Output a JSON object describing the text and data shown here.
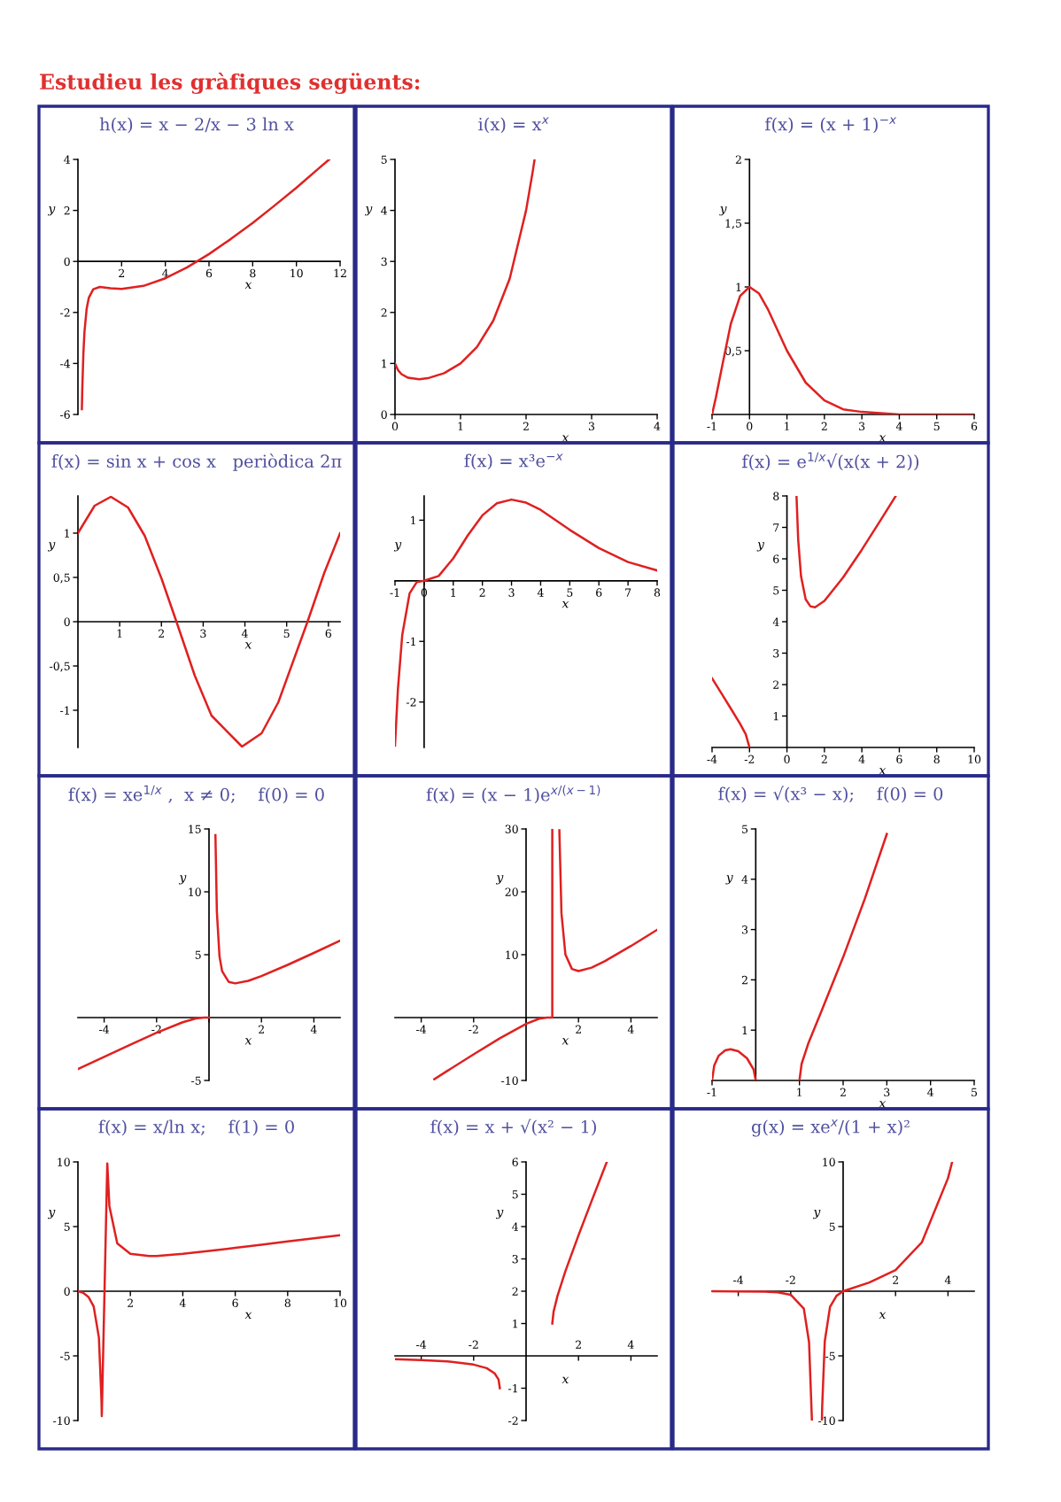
{
  "chart_data": [
    {
      "type": "other",
      "title": "Estudieu les gràfiques següents:"
    },
    {
      "type": "line",
      "title": "h(x) = x − 2/x − 3 ln x",
      "xlabel": "x",
      "ylabel": "y",
      "xlim": [
        0,
        12
      ],
      "ylim": [
        -6,
        4
      ],
      "xticks": [
        2,
        4,
        6,
        8,
        10,
        12
      ],
      "yticks": [
        -6,
        -4,
        -2,
        0,
        2,
        4
      ],
      "series": [
        {
          "color": "#e02020",
          "x": [
            0.18,
            0.2,
            0.25,
            0.3,
            0.4,
            0.5,
            0.7,
            1,
            1.5,
            2,
            3,
            4,
            5,
            6,
            7,
            8,
            9,
            10,
            11,
            11.5
          ],
          "values": [
            -5.79,
            -4.97,
            -3.59,
            -2.75,
            -1.85,
            -1.42,
            -1.09,
            -1,
            -1.05,
            -1.08,
            -0.96,
            -0.66,
            -0.23,
            0.29,
            0.88,
            1.51,
            2.19,
            2.89,
            3.63,
            4
          ]
        }
      ]
    },
    {
      "type": "line",
      "title": "i(x) = x$^{x}$",
      "xlabel": "x",
      "ylabel": "y",
      "xlim": [
        0,
        4
      ],
      "ylim": [
        0,
        5
      ],
      "xticks": [
        0,
        1,
        2,
        3,
        4
      ],
      "yticks": [
        0,
        1,
        2,
        3,
        4,
        5
      ],
      "series": [
        {
          "color": "#e02020",
          "x": [
            0,
            0.05,
            0.1,
            0.2,
            0.37,
            0.5,
            0.75,
            1,
            1.25,
            1.5,
            1.75,
            2,
            2.1,
            2.13
          ],
          "values": [
            1,
            0.86,
            0.79,
            0.72,
            0.69,
            0.71,
            0.81,
            1,
            1.32,
            1.84,
            2.66,
            4,
            4.75,
            5
          ]
        }
      ]
    },
    {
      "type": "line",
      "title": "f(x) = (x + 1)$^{−x}$",
      "xlabel": "x",
      "ylabel": "y",
      "xlim": [
        -1,
        6
      ],
      "ylim": [
        0,
        2
      ],
      "xticks": [
        -1,
        0,
        1,
        2,
        3,
        4,
        5,
        6
      ],
      "yticks": [
        {
          "value": 0.5,
          "label": "0,5"
        },
        1,
        {
          "value": 1.5,
          "label": "1,5"
        },
        2
      ],
      "series": [
        {
          "color": "#e02020",
          "x": [
            -1,
            -0.9,
            -0.75,
            -0.5,
            -0.25,
            0,
            0.25,
            0.5,
            1,
            1.5,
            2,
            2.5,
            3,
            4,
            5,
            6
          ],
          "values": [
            0,
            0.13,
            0.35,
            0.71,
            0.93,
            1,
            0.95,
            0.82,
            0.5,
            0.25,
            0.11,
            0.04,
            0.02,
            0,
            0,
            0
          ]
        }
      ]
    },
    {
      "type": "line",
      "title": "f(x) = sin x + cos x   periòdica 2π",
      "xlabel": "x",
      "ylabel": "y",
      "xlim": [
        0,
        6.28
      ],
      "ylim": [
        -1.42,
        1.42
      ],
      "xticks": [
        1,
        2,
        3,
        4,
        5,
        6
      ],
      "yticks": [
        -1,
        {
          "value": -0.5,
          "label": "-0,5"
        },
        0,
        {
          "value": 0.5,
          "label": "0,5"
        },
        1
      ],
      "series": [
        {
          "color": "#e02020",
          "x": [
            0,
            0.4,
            0.79,
            1.2,
            1.6,
            2,
            2.36,
            2.8,
            3.2,
            3.93,
            4.4,
            4.8,
            5.5,
            5.9,
            6.28
          ],
          "values": [
            1,
            1.31,
            1.41,
            1.29,
            0.97,
            0.49,
            0,
            -0.61,
            -1.06,
            -1.41,
            -1.26,
            -0.91,
            0,
            0.55,
            1
          ]
        }
      ]
    },
    {
      "type": "line",
      "title": "f(x) = x³e$^{−x}$",
      "xlabel": "x",
      "ylabel": "y",
      "xlim": [
        -1,
        8
      ],
      "ylim": [
        -2.75,
        1.4
      ],
      "xticks": [
        -1,
        0,
        1,
        2,
        3,
        4,
        5,
        6,
        7,
        8
      ],
      "yticks": [
        -2,
        -1,
        1
      ],
      "series": [
        {
          "color": "#e02020",
          "x": [
            -1,
            -0.9,
            -0.75,
            -0.5,
            -0.25,
            0,
            0.5,
            1,
            1.5,
            2,
            2.5,
            3,
            3.5,
            4,
            5,
            6,
            7,
            8
          ],
          "values": [
            -2.72,
            -1.79,
            -0.89,
            -0.21,
            -0.02,
            0,
            0.08,
            0.37,
            0.75,
            1.08,
            1.28,
            1.34,
            1.29,
            1.17,
            0.84,
            0.54,
            0.31,
            0.17
          ]
        }
      ]
    },
    {
      "type": "line",
      "title": "f(x) = e$^{1/x}$√(x(x + 2))",
      "xlabel": "x",
      "ylabel": "y",
      "xlim": [
        -4,
        10
      ],
      "ylim": [
        0,
        8
      ],
      "xticks": [
        -4,
        -2,
        0,
        2,
        4,
        6,
        8,
        10
      ],
      "yticks": [
        1,
        2,
        3,
        4,
        5,
        6,
        7,
        8
      ],
      "series": [
        {
          "color": "#e02020",
          "x": [
            -4,
            -3.5,
            -3,
            -2.5,
            -2.2,
            -2
          ],
          "values": [
            2.2,
            1.72,
            1.24,
            0.75,
            0.42,
            0
          ]
        },
        {
          "color": "#e02020",
          "x": [
            0.51,
            0.6,
            0.75,
            1,
            1.25,
            1.5,
            2,
            3,
            4,
            5,
            5.8
          ],
          "values": [
            8,
            6.61,
            5.45,
            4.71,
            4.49,
            4.46,
            4.66,
            5.41,
            6.29,
            7.23,
            7.99
          ]
        }
      ]
    },
    {
      "type": "line",
      "title": "f(x) = xe$^{1/x}$ ,  x ≠ 0;    f(0) = 0",
      "xlabel": "x",
      "ylabel": "y",
      "xlim": [
        -5,
        5
      ],
      "ylim": [
        -5,
        15
      ],
      "xticks": [
        -4,
        -2,
        {
          "value": 0,
          "label": null
        },
        2,
        4
      ],
      "yticks": [
        -5,
        5,
        10,
        15
      ],
      "series": [
        {
          "color": "#e02020",
          "x": [
            -5,
            -4,
            -3,
            -2,
            -1,
            -0.5,
            -0.2,
            0
          ],
          "values": [
            -4.09,
            -3.12,
            -2.15,
            -1.21,
            -0.37,
            -0.07,
            0,
            0
          ]
        },
        {
          "color": "#e02020",
          "x": [
            0.245,
            0.3,
            0.4,
            0.5,
            0.75,
            1,
            1.5,
            2,
            3,
            4,
            5
          ],
          "values": [
            14.5,
            8.41,
            4.87,
            3.69,
            2.84,
            2.72,
            2.92,
            3.3,
            4.19,
            5.14,
            6.11
          ]
        }
      ]
    },
    {
      "type": "line",
      "title": "f(x) = (x − 1)e$^{x/(x−1)}$",
      "xlabel": "x",
      "ylabel": "y",
      "xlim": [
        -5,
        5
      ],
      "ylim": [
        -10,
        30
      ],
      "xticks": [
        -4,
        -2,
        {
          "value": 0,
          "label": null
        },
        2,
        4
      ],
      "yticks": [
        -10,
        10,
        20,
        30
      ],
      "series": [
        {
          "color": "#e02020",
          "x": [
            -3.5,
            -3,
            -2,
            -1,
            0,
            0.5,
            0.8,
            1,
            1
          ],
          "values": [
            -9.8,
            -8.47,
            -5.84,
            -3.3,
            -1,
            -0.18,
            0,
            0,
            30
          ]
        },
        {
          "color": "#e02020",
          "x": [
            1.27,
            1.35,
            1.5,
            1.75,
            2,
            2.5,
            3,
            4,
            5
          ],
          "values": [
            29.8,
            16.6,
            10.04,
            7.73,
            7.39,
            7.94,
            8.96,
            11.38,
            13.96
          ]
        }
      ]
    },
    {
      "type": "line",
      "title": "f(x) = √(x³ − x);    f(0) = 0",
      "xlabel": "x",
      "ylabel": "y",
      "xlim": [
        -1,
        5
      ],
      "ylim": [
        0,
        5
      ],
      "xticks": [
        -1,
        1,
        2,
        3,
        4,
        5
      ],
      "yticks": [
        1,
        2,
        3,
        4,
        5
      ],
      "series": [
        {
          "color": "#e02020",
          "x": [
            -1,
            -0.95,
            -0.85,
            -0.7,
            -0.577,
            -0.4,
            -0.2,
            -0.05,
            0
          ],
          "values": [
            0,
            0.3,
            0.49,
            0.6,
            0.62,
            0.58,
            0.44,
            0.22,
            0
          ]
        },
        {
          "color": "#e02020",
          "x": [
            1,
            1.05,
            1.2,
            1.5,
            2,
            2.5,
            3
          ],
          "values": [
            0,
            0.33,
            0.73,
            1.37,
            2.45,
            3.62,
            4.9
          ]
        }
      ]
    },
    {
      "type": "line",
      "title": "f(x) = x/ln x;    f(1) = 0",
      "xlabel": "x",
      "ylabel": "y",
      "xlim": [
        0,
        10
      ],
      "ylim": [
        -10,
        10
      ],
      "xticks": [
        2,
        4,
        6,
        8,
        10
      ],
      "yticks": [
        -10,
        -5,
        0,
        5,
        10
      ],
      "series": [
        {
          "color": "#e02020",
          "x": [
            0,
            0.2,
            0.4,
            0.6,
            0.8,
            0.9,
            0.91,
            1.12,
            1.2,
            1.5,
            2,
            2.72,
            3,
            4,
            5,
            6,
            7,
            8,
            9,
            10
          ],
          "values": [
            0,
            -0.12,
            -0.44,
            -1.17,
            -3.59,
            -8.54,
            -9.65,
            9.88,
            6.58,
            3.7,
            2.89,
            2.72,
            2.73,
            2.89,
            3.11,
            3.35,
            3.6,
            3.85,
            4.1,
            4.34
          ]
        }
      ]
    },
    {
      "type": "line",
      "title": "f(x) = x + √(x² − 1)",
      "xlabel": "x",
      "ylabel": "y",
      "xlim": [
        -5,
        5
      ],
      "ylim": [
        -2,
        6
      ],
      "xticks": [
        -4,
        -2,
        2,
        4
      ],
      "yticks": [
        -2,
        -1,
        1,
        2,
        3,
        4,
        5,
        6
      ],
      "series": [
        {
          "color": "#e02020",
          "x": [
            -5,
            -4,
            -3,
            -2,
            -1.5,
            -1.2,
            -1.05,
            -1
          ],
          "values": [
            -0.1,
            -0.13,
            -0.17,
            -0.27,
            -0.38,
            -0.54,
            -0.73,
            -1
          ]
        },
        {
          "color": "#e02020",
          "x": [
            1,
            1.05,
            1.2,
            1.5,
            2,
            2.5,
            3.08
          ],
          "values": [
            1,
            1.37,
            1.86,
            2.62,
            3.73,
            4.79,
            6
          ]
        }
      ]
    },
    {
      "type": "line",
      "title": "g(x) = xe$^{x}$/(1 + x)²",
      "xlabel": "x",
      "ylabel": "y",
      "xlim": [
        -5,
        5
      ],
      "ylim": [
        -10,
        10
      ],
      "xticks": [
        -4,
        -2,
        2,
        4
      ],
      "yticks": [
        -10,
        -5,
        5,
        10
      ],
      "series": [
        {
          "color": "#e02020",
          "x": [
            -5,
            -4,
            -3,
            -2.5,
            -2,
            -1.5,
            -1.3,
            -1.19
          ],
          "values": [
            0,
            -0.01,
            -0.04,
            -0.09,
            -0.27,
            -1.34,
            -3.94,
            -10
          ]
        },
        {
          "color": "#e02020",
          "x": [
            -0.81,
            -0.8,
            -0.7,
            -0.5,
            -0.25,
            0,
            1,
            2,
            3,
            4,
            4.15
          ],
          "values": [
            -9.98,
            -8.99,
            -3.87,
            -1.21,
            -0.35,
            0,
            0.68,
            1.64,
            3.77,
            8.74,
            9.93
          ]
        }
      ]
    }
  ]
}
